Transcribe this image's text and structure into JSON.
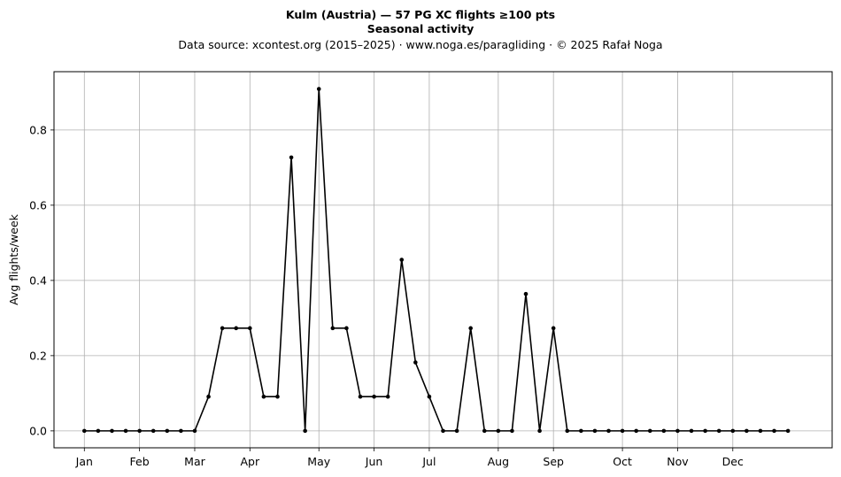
{
  "titles": {
    "line1": "Kulm (Austria)  —  57 PG XC flights ≥100 pts",
    "line2": "Seasonal activity",
    "line3": "Data source: xcontest.org (2015–2025)  ·  www.noga.es/paragliding  ·  © 2025 Rafał Noga"
  },
  "chart_data": {
    "type": "line",
    "title": "Kulm (Austria)  —  57 PG XC flights ≥100 pts",
    "subtitle": "Seasonal activity",
    "xlabel": "",
    "ylabel": "Avg flights/week",
    "xticks": [
      {
        "label": "Jan",
        "week": 1
      },
      {
        "label": "Feb",
        "week": 5
      },
      {
        "label": "Mar",
        "week": 9
      },
      {
        "label": "Apr",
        "week": 13
      },
      {
        "label": "May",
        "week": 18
      },
      {
        "label": "Jun",
        "week": 22
      },
      {
        "label": "Jul",
        "week": 26
      },
      {
        "label": "Aug",
        "week": 31
      },
      {
        "label": "Sep",
        "week": 35
      },
      {
        "label": "Oct",
        "week": 40
      },
      {
        "label": "Nov",
        "week": 44
      },
      {
        "label": "Dec",
        "week": 48
      }
    ],
    "yticks": [
      0.0,
      0.2,
      0.4,
      0.6,
      0.8
    ],
    "xlim": [
      -1.2,
      55.2
    ],
    "ylim": [
      -0.045,
      0.955
    ],
    "grid": true,
    "series": [
      {
        "x": [
          1,
          2,
          3,
          4,
          5,
          6,
          7,
          8,
          9,
          10,
          11,
          12,
          13,
          14,
          15,
          16,
          17,
          18,
          19,
          20,
          21,
          22,
          23,
          24,
          25,
          26,
          27,
          28,
          29,
          30,
          31,
          32,
          33,
          34,
          35,
          36,
          37,
          38,
          39,
          40,
          41,
          42,
          43,
          44,
          45,
          46,
          47,
          48,
          49,
          50,
          51,
          52
        ],
        "values": [
          0,
          0,
          0,
          0,
          0,
          0,
          0,
          0,
          0,
          0.091,
          0.273,
          0.273,
          0.273,
          0.091,
          0.091,
          0.727,
          0,
          0.909,
          0.273,
          0.273,
          0.091,
          0.091,
          0.091,
          0.455,
          0.182,
          0.091,
          0,
          0,
          0.273,
          0,
          0,
          0,
          0.364,
          0,
          0.273,
          0,
          0,
          0,
          0,
          0,
          0,
          0,
          0,
          0,
          0,
          0,
          0,
          0,
          0,
          0,
          0,
          0
        ],
        "color": "#000000"
      }
    ]
  }
}
